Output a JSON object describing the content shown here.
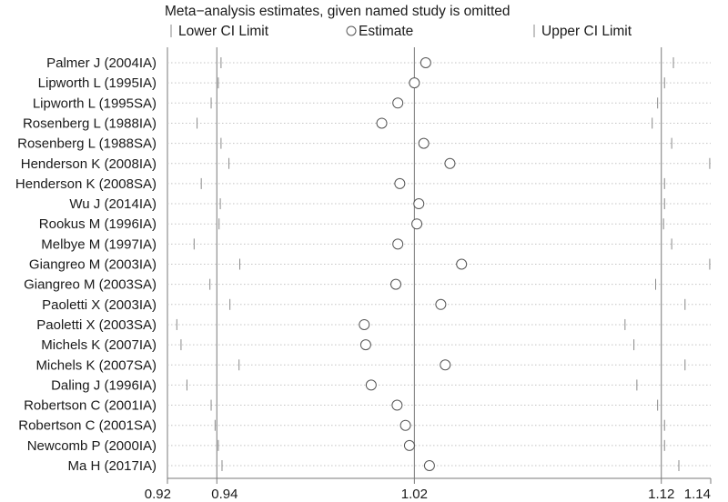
{
  "chart_data": {
    "type": "forest",
    "title": "Meta−analysis estimates, given named study is omitted",
    "legend": {
      "lower": "Lower CI Limit",
      "estimate": "Estimate",
      "upper": "Upper CI Limit",
      "position": "top"
    },
    "xlim": [
      0.92,
      1.14
    ],
    "xticks": [
      "0.92",
      "0.94",
      "1.02",
      "1.12",
      "1.14"
    ],
    "xtick_values": [
      0.92,
      0.94,
      1.02,
      1.12,
      1.14
    ],
    "reference_lines": [
      0.94,
      1.02,
      1.12
    ],
    "studies": [
      {
        "name": "Palmer J (2004IA)",
        "lower": 0.9417,
        "estimate": 1.0246,
        "upper": 1.1249
      },
      {
        "name": "Lipworth L (1995IA)",
        "lower": 0.9406,
        "estimate": 1.02,
        "upper": 1.1213
      },
      {
        "name": "Lipworth L (1995SA)",
        "lower": 0.9377,
        "estimate": 1.0133,
        "upper": 1.1185
      },
      {
        "name": "Rosenberg L (1988IA)",
        "lower": 0.932,
        "estimate": 1.0068,
        "upper": 1.1163
      },
      {
        "name": "Rosenberg L (1988SA)",
        "lower": 0.9417,
        "estimate": 1.0238,
        "upper": 1.1242
      },
      {
        "name": "Henderson K (2008IA)",
        "lower": 0.9449,
        "estimate": 1.0344,
        "upper": 1.1396
      },
      {
        "name": "Henderson K (2008SA)",
        "lower": 0.9337,
        "estimate": 1.0141,
        "upper": 1.1213
      },
      {
        "name": "Wu J (2014IA)",
        "lower": 0.9414,
        "estimate": 1.0218,
        "upper": 1.1213
      },
      {
        "name": "Rookus M (1996IA)",
        "lower": 0.9409,
        "estimate": 1.021,
        "upper": 1.1209
      },
      {
        "name": "Melbye M (1997IA)",
        "lower": 0.9308,
        "estimate": 1.0133,
        "upper": 1.1242
      },
      {
        "name": "Giangreo M (2003IA)",
        "lower": 0.9493,
        "estimate": 1.0391,
        "upper": 1.1396
      },
      {
        "name": "Giangreo M (2003SA)",
        "lower": 0.9372,
        "estimate": 1.0125,
        "upper": 1.1177
      },
      {
        "name": "Paoletti X (2003IA)",
        "lower": 0.9453,
        "estimate": 1.0307,
        "upper": 1.1296
      },
      {
        "name": "Paoletti X (2003SA)",
        "lower": 0.9238,
        "estimate": 0.9997,
        "upper": 1.1053
      },
      {
        "name": "Michels K (2007IA)",
        "lower": 0.9255,
        "estimate": 1.0003,
        "upper": 1.1089
      },
      {
        "name": "Michels K (2007SA)",
        "lower": 0.949,
        "estimate": 1.0325,
        "upper": 1.1296
      },
      {
        "name": "Daling J (1996IA)",
        "lower": 0.9279,
        "estimate": 1.0025,
        "upper": 1.1101
      },
      {
        "name": "Robertson C (2001IA)",
        "lower": 0.9377,
        "estimate": 1.013,
        "upper": 1.1185
      },
      {
        "name": "Robertson C (2001SA)",
        "lower": 0.9393,
        "estimate": 1.0164,
        "upper": 1.1213
      },
      {
        "name": "Newcomb P (2000IA)",
        "lower": 0.9406,
        "estimate": 1.018,
        "upper": 1.1213
      },
      {
        "name": "Ma H (2017IA)",
        "lower": 0.9421,
        "estimate": 1.0261,
        "upper": 1.1271
      }
    ]
  }
}
